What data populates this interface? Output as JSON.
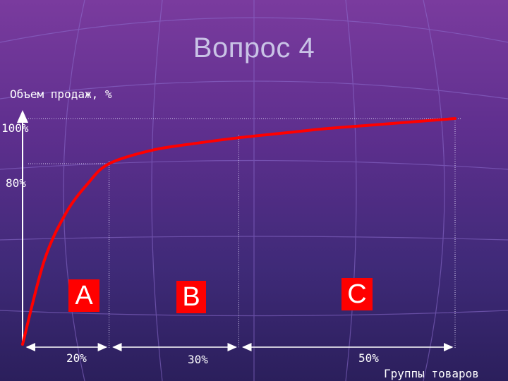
{
  "title": "Вопрос 4",
  "chart_data": {
    "type": "line",
    "ylabel": "Объем продаж, %",
    "xlabel": "Группы товаров",
    "y_ticks": [
      "100%",
      "80%"
    ],
    "series": [
      {
        "x": [
          0,
          5,
          10,
          15,
          20,
          30,
          40,
          50,
          60,
          70,
          80,
          90,
          100
        ],
        "y": [
          0,
          37,
          58,
          71,
          80,
          86,
          89,
          91.5,
          93.5,
          95.5,
          97,
          98.5,
          100
        ]
      }
    ],
    "groups": [
      {
        "name": "A",
        "share": "20%"
      },
      {
        "name": "B",
        "share": "30%"
      },
      {
        "name": "C",
        "share": "50%"
      }
    ],
    "xlim": [
      0,
      100
    ],
    "ylim": [
      0,
      100
    ],
    "colors": {
      "line": "#ff0000",
      "group_box": "#ff0000",
      "axis": "#ffffff"
    }
  }
}
